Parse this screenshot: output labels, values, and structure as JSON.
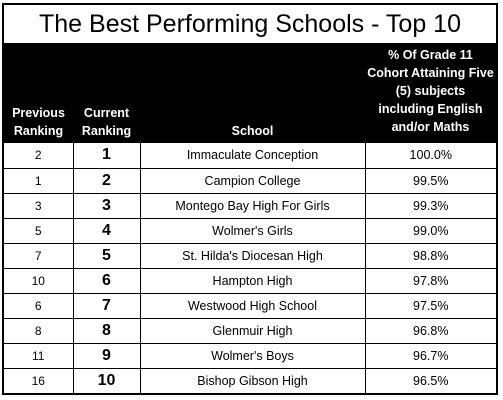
{
  "title": "The Best Performing Schools - Top 10",
  "headers": {
    "previous_ranking": "Previous Ranking",
    "current_ranking": "Current Ranking",
    "school": "School",
    "percent": "% Of Grade 11 Cohort Attaining Five (5) subjects including English and/or Maths"
  },
  "rows": [
    {
      "previous": "2",
      "current": "1",
      "school": "Immaculate Conception",
      "percent": "100.0%"
    },
    {
      "previous": "1",
      "current": "2",
      "school": "Campion College",
      "percent": "99.5%"
    },
    {
      "previous": "3",
      "current": "3",
      "school": "Montego Bay High For Girls",
      "percent": "99.3%"
    },
    {
      "previous": "5",
      "current": "4",
      "school": "Wolmer's Girls",
      "percent": "99.0%"
    },
    {
      "previous": "7",
      "current": "5",
      "school": "St. Hilda's Diocesan High",
      "percent": "98.8%"
    },
    {
      "previous": "10",
      "current": "6",
      "school": "Hampton High",
      "percent": "97.8%"
    },
    {
      "previous": "6",
      "current": "7",
      "school": "Westwood High School",
      "percent": "97.5%"
    },
    {
      "previous": "8",
      "current": "8",
      "school": "Glenmuir High",
      "percent": "96.8%"
    },
    {
      "previous": "11",
      "current": "9",
      "school": "Wolmer's Boys",
      "percent": "96.7%"
    },
    {
      "previous": "16",
      "current": "10",
      "school": "Bishop Gibson High",
      "percent": "96.5%"
    }
  ]
}
